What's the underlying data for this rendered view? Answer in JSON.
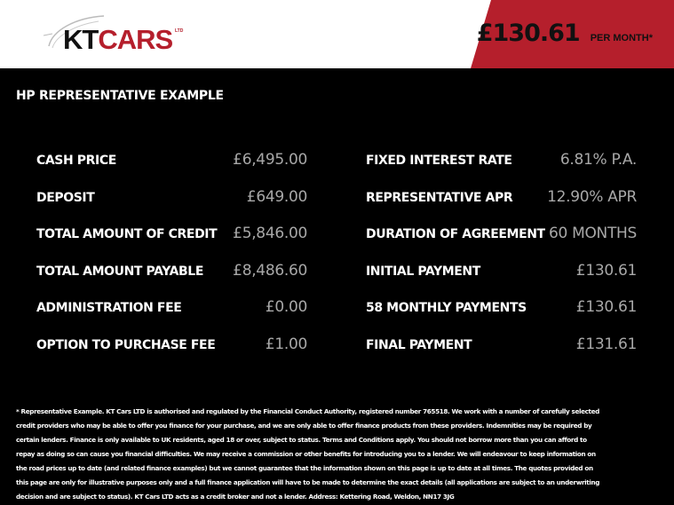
{
  "header": {
    "logo": {
      "brand_main": "KT",
      "brand_accent": "CARS",
      "suffix": "LTD"
    },
    "price": {
      "amount": "£130.61",
      "per": "PER MONTH*"
    },
    "colors": {
      "accent": "#b51f2c",
      "background": "#000000",
      "header": "#ffffff"
    }
  },
  "section": {
    "title": "HP REPRESENTATIVE EXAMPLE"
  },
  "left_items": [
    {
      "label": "CASH PRICE",
      "value": "£6,495.00"
    },
    {
      "label": "DEPOSIT",
      "value": "£649.00"
    },
    {
      "label": "TOTAL AMOUNT OF CREDIT",
      "value": "£5,846.00"
    },
    {
      "label": "TOTAL AMOUNT PAYABLE",
      "value": "£8,486.60"
    },
    {
      "label": "ADMINISTRATION FEE",
      "value": "£0.00"
    },
    {
      "label": "OPTION TO PURCHASE FEE",
      "value": "£1.00"
    }
  ],
  "right_items": [
    {
      "label": "FIXED INTEREST RATE",
      "value": "6.81% P.A."
    },
    {
      "label": "REPRESENTATIVE APR",
      "value": "12.90% APR"
    },
    {
      "label": "DURATION OF AGREEMENT",
      "value": "60 MONTHS"
    },
    {
      "label": "INITIAL PAYMENT",
      "value": "£130.61"
    },
    {
      "label": "58 MONTHLY PAYMENTS",
      "value": "£130.61"
    },
    {
      "label": "FINAL PAYMENT",
      "value": "£131.61"
    }
  ],
  "footnote": "* Representative Example. KT Cars LTD is authorised and regulated by the Financial Conduct Authority, registered number 765518. We work with a number of carefully selected credit providers who may be able to offer you finance for your purchase, and we are only able to offer finance products from these providers. Indemnities may be required by certain lenders. Finance is only available to UK residents, aged 18 or over, subject to status. Terms and Conditions apply. You should not borrow more than you can afford to repay as doing so can cause you financial difficulties. We may receive a commission or other benefits for introducing you to a lender. We will endeavour to keep information on the road prices up to date (and related finance examples) but we cannot guarantee that the information shown on this page is up to date at all times. The quotes provided on this page are only for illustrative purposes only and a full finance application will have to be made to determine the exact details (all applications are subject to an underwriting decision and are subject to status). KT Cars LTD acts as a credit broker and not a lender. Address: Kettering Road, Weldon, NN17 3JG"
}
